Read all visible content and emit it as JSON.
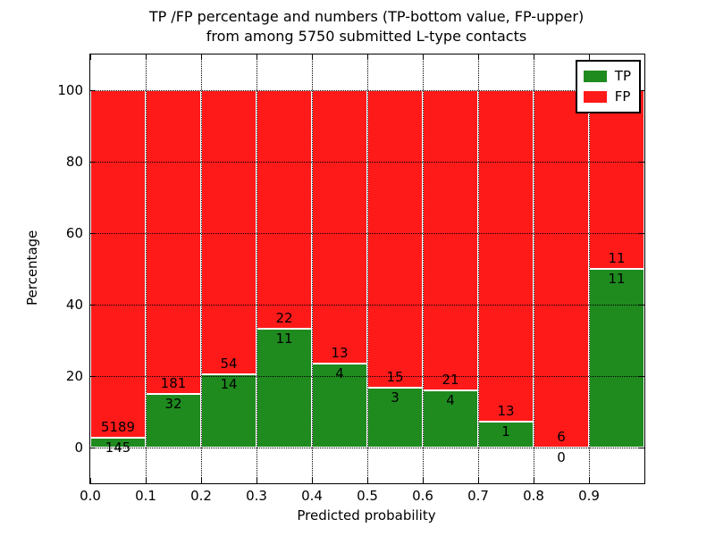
{
  "title": {
    "line1": "TP /FP percentage and numbers (TP-bottom value, FP-upper)",
    "line2": "from among 5750 submitted L-type contacts"
  },
  "chart_data": {
    "type": "bar",
    "stacked": true,
    "normalized_to_percent_per_bar": true,
    "title": "TP /FP percentage and numbers (TP-bottom value, FP-upper) from among 5750 submitted L-type contacts",
    "xlabel": "Predicted probability",
    "ylabel": "Percentage",
    "bins": [
      0.0,
      0.1,
      0.2,
      0.3,
      0.4,
      0.5,
      0.6,
      0.7,
      0.8,
      0.9
    ],
    "bin_width": 0.1,
    "xlim": [
      0.0,
      1.0
    ],
    "ylim": [
      -10,
      110
    ],
    "xticks": [
      0.0,
      0.1,
      0.2,
      0.3,
      0.4,
      0.5,
      0.6,
      0.7,
      0.8,
      0.9
    ],
    "xtick_labels": [
      "0.0",
      "0.1",
      "0.2",
      "0.3",
      "0.4",
      "0.5",
      "0.6",
      "0.7",
      "0.8",
      "0.9"
    ],
    "yticks": [
      0,
      20,
      40,
      60,
      80,
      100
    ],
    "ytick_labels": [
      "0",
      "20",
      "40",
      "60",
      "80",
      "100"
    ],
    "grid": true,
    "series": [
      {
        "name": "TP",
        "color": "#1f8b1f",
        "counts": [
          145,
          32,
          14,
          11,
          4,
          3,
          4,
          1,
          0,
          11
        ],
        "percent": [
          2.72,
          15.02,
          20.59,
          33.33,
          23.53,
          16.67,
          16.0,
          7.14,
          0.0,
          50.0
        ]
      },
      {
        "name": "FP",
        "color": "#ff1a1a",
        "counts": [
          5189,
          181,
          54,
          22,
          13,
          15,
          21,
          13,
          6,
          11
        ],
        "percent": [
          97.28,
          84.98,
          79.41,
          66.67,
          76.47,
          83.33,
          84.0,
          92.86,
          100.0,
          50.0
        ]
      }
    ],
    "legend": {
      "position": "upper right",
      "entries": [
        {
          "label": "TP",
          "color": "#1f8b1f"
        },
        {
          "label": "FP",
          "color": "#ff1a1a"
        }
      ]
    }
  }
}
